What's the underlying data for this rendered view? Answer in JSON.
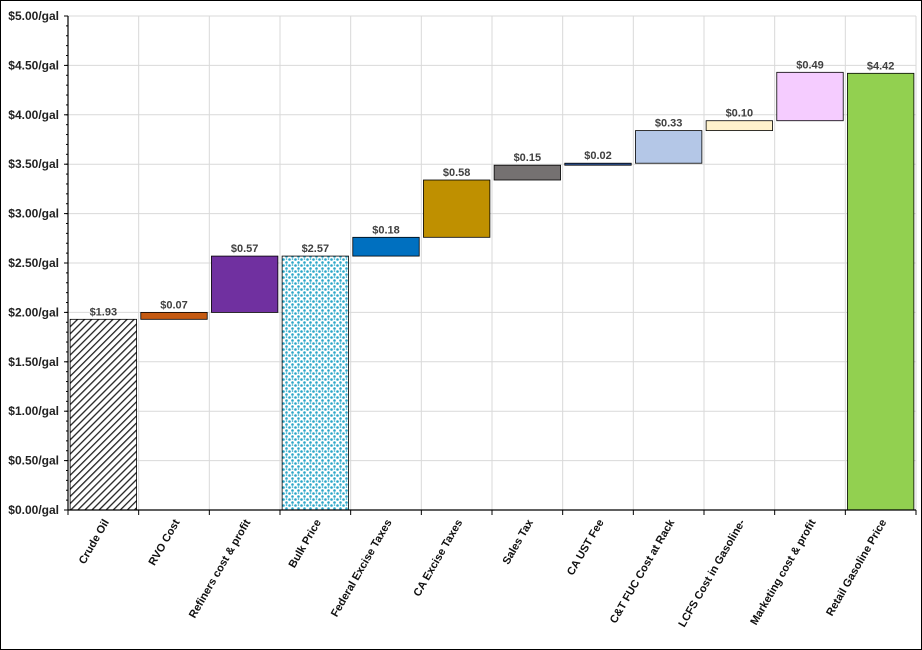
{
  "chart_data": {
    "type": "waterfall",
    "y_tick_labels": [
      "$0.00/gal",
      "$0.50/gal",
      "$1.00/gal",
      "$1.50/gal",
      "$2.00/gal",
      "$2.50/gal",
      "$3.00/gal",
      "$3.50/gal",
      "$4.00/gal",
      "$4.50/gal",
      "$5.00/gal"
    ],
    "ylim": [
      0,
      5
    ],
    "y_step": 0.5,
    "grid": true,
    "bars": [
      {
        "category": "Crude Oil",
        "start": 0,
        "end": 1.93,
        "label": "$1.93",
        "color": "#ffffff",
        "pattern": "hatch"
      },
      {
        "category": "RVO Cost",
        "start": 1.93,
        "end": 2.0,
        "label": "$0.07",
        "color": "#c55a11",
        "pattern": ""
      },
      {
        "category": "Refiners cost & profit",
        "start": 2.0,
        "end": 2.57,
        "label": "$0.57",
        "color": "#7030a0",
        "pattern": ""
      },
      {
        "category": "Bulk Price",
        "start": 0,
        "end": 2.57,
        "label": "$2.57",
        "color": "#ffffff",
        "pattern": "dots"
      },
      {
        "category": "Federal Excise Taxes",
        "start": 2.57,
        "end": 2.76,
        "label": "$0.18",
        "color": "#0070c0",
        "pattern": ""
      },
      {
        "category": "CA Excise Taxes",
        "start": 2.76,
        "end": 3.34,
        "label": "$0.58",
        "color": "#bf9000",
        "pattern": ""
      },
      {
        "category": "Sales Tax",
        "start": 3.34,
        "end": 3.49,
        "label": "$0.15",
        "color": "#757171",
        "pattern": ""
      },
      {
        "category": "CA UST Fee",
        "start": 3.49,
        "end": 3.51,
        "label": "$0.02",
        "color": "#2f5597",
        "pattern": ""
      },
      {
        "category": "C&T FUC Cost at Rack",
        "start": 3.51,
        "end": 3.84,
        "label": "$0.33",
        "color": "#b4c7e7",
        "pattern": ""
      },
      {
        "category": "LCFS Cost in Gasoline-",
        "start": 3.84,
        "end": 3.94,
        "label": "$0.10",
        "color": "#fff2cc",
        "pattern": ""
      },
      {
        "category": "Marketing cost & profit",
        "start": 3.94,
        "end": 4.43,
        "label": "$0.49",
        "color": "#f5ccff",
        "pattern": ""
      },
      {
        "category": "Retail Gasoline Price",
        "start": 0,
        "end": 4.42,
        "label": "$4.42",
        "color": "#92d050",
        "pattern": ""
      }
    ]
  }
}
